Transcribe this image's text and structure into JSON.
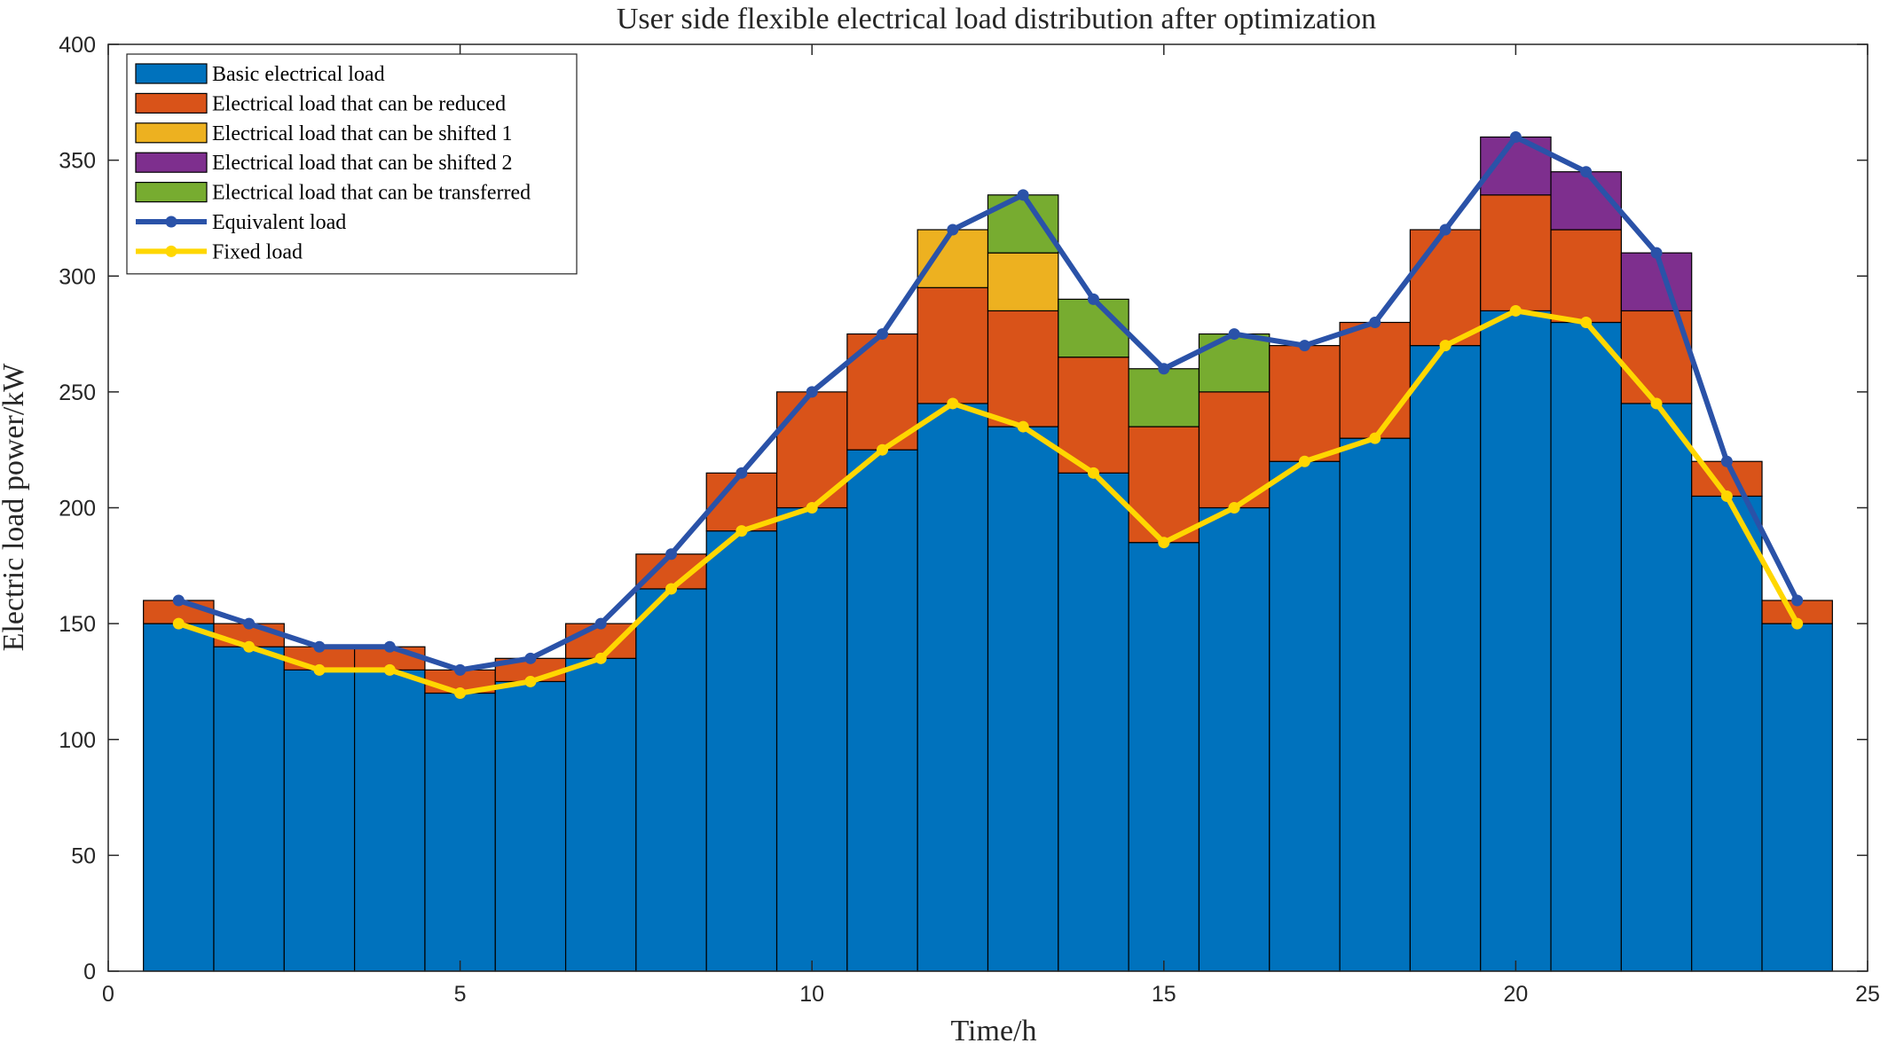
{
  "chart_data": {
    "type": "bar",
    "stacked": true,
    "title": "User side flexible electrical load distribution after optimization",
    "xlabel": "Time/h",
    "ylabel": "Electric load power/kW",
    "xlim": [
      0,
      25
    ],
    "ylim": [
      0,
      400
    ],
    "xticks": [
      0,
      5,
      10,
      15,
      20,
      25
    ],
    "yticks": [
      0,
      50,
      100,
      150,
      200,
      250,
      300,
      350,
      400
    ],
    "grid": false,
    "legend_position": "top-left",
    "x": [
      1,
      2,
      3,
      4,
      5,
      6,
      7,
      8,
      9,
      10,
      11,
      12,
      13,
      14,
      15,
      16,
      17,
      18,
      19,
      20,
      21,
      22,
      23,
      24
    ],
    "bar_series": [
      {
        "name": "Basic electrical load",
        "color": "#0072BD",
        "values": [
          150,
          140,
          130,
          130,
          120,
          125,
          135,
          165,
          190,
          200,
          225,
          245,
          235,
          215,
          185,
          200,
          220,
          230,
          270,
          285,
          280,
          245,
          205,
          150
        ]
      },
      {
        "name": "Electrical load that can be reduced",
        "color": "#D95319",
        "values": [
          10,
          10,
          10,
          10,
          10,
          10,
          15,
          15,
          25,
          50,
          50,
          50,
          50,
          50,
          50,
          50,
          50,
          50,
          50,
          50,
          40,
          40,
          15,
          10
        ]
      },
      {
        "name": "Electrical load that can be shifted 1",
        "color": "#EDB120",
        "values": [
          0,
          0,
          0,
          0,
          0,
          0,
          0,
          0,
          0,
          0,
          0,
          25,
          25,
          0,
          0,
          0,
          0,
          0,
          0,
          0,
          0,
          0,
          0,
          0
        ]
      },
      {
        "name": "Electrical load that can be shifted 2",
        "color": "#7E2F8E",
        "values": [
          0,
          0,
          0,
          0,
          0,
          0,
          0,
          0,
          0,
          0,
          0,
          0,
          0,
          0,
          0,
          0,
          0,
          0,
          0,
          25,
          25,
          25,
          0,
          0
        ]
      },
      {
        "name": "Electrical load that can be transferred",
        "color": "#77AC30",
        "values": [
          0,
          0,
          0,
          0,
          0,
          0,
          0,
          0,
          0,
          0,
          0,
          0,
          25,
          25,
          25,
          25,
          0,
          0,
          0,
          0,
          0,
          0,
          0,
          0
        ]
      }
    ],
    "line_series": [
      {
        "name": "Equivalent load",
        "color": "#2A52A8",
        "values": [
          160,
          150,
          140,
          140,
          130,
          135,
          150,
          180,
          215,
          250,
          275,
          320,
          335,
          290,
          260,
          275,
          270,
          280,
          320,
          360,
          345,
          310,
          220,
          160
        ]
      },
      {
        "name": "Fixed load",
        "color": "#FFD700",
        "values": [
          150,
          140,
          130,
          130,
          120,
          125,
          135,
          165,
          190,
          200,
          225,
          245,
          235,
          215,
          185,
          200,
          220,
          230,
          270,
          285,
          280,
          245,
          205,
          150
        ]
      }
    ]
  }
}
